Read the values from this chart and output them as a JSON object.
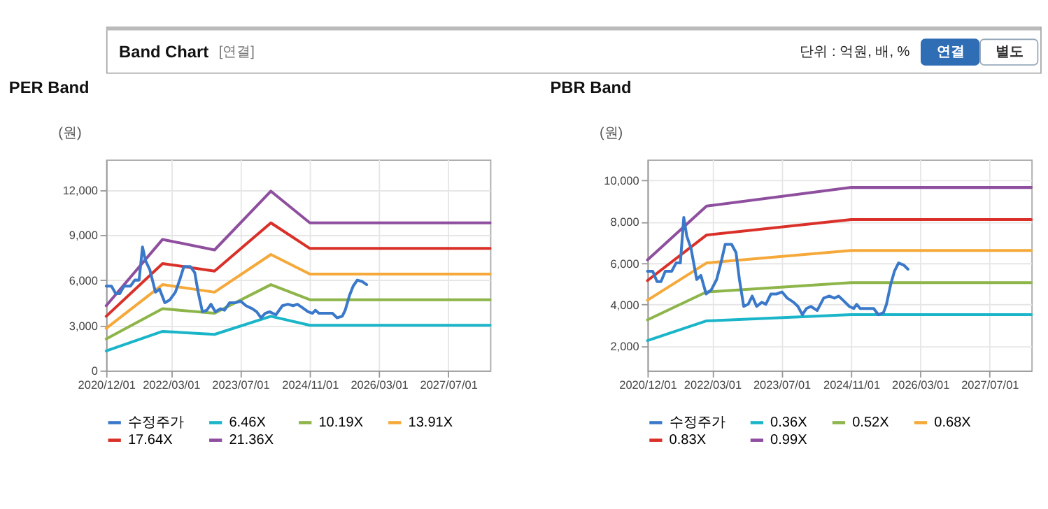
{
  "chart_data": [
    {
      "type": "other",
      "title": "Band Chart",
      "annotations": [
        "[연결]",
        "단위 : 억원, 배, %",
        "연결",
        "별도"
      ]
    },
    {
      "type": "line",
      "title": "PER Band",
      "ylabel": "(원)",
      "xlim": [
        "2020-12-01",
        "2028-04-20"
      ],
      "ylim": [
        0,
        14000
      ],
      "yticks": [
        0,
        {
          "value": 3000,
          "label": "3,000"
        },
        {
          "value": 6000,
          "label": "6,000"
        },
        {
          "value": 9000,
          "label": "9,000"
        },
        {
          "value": 12000,
          "label": "12,000"
        }
      ],
      "xticks": [
        {
          "value": "2020-12-01",
          "label": "2020/12/01"
        },
        {
          "value": "2022-03-01",
          "label": "2022/03/01"
        },
        {
          "value": "2023-07-01",
          "label": "2023/07/01"
        },
        {
          "value": "2024-11-01",
          "label": "2024/11/01"
        },
        {
          "value": "2026-03-01",
          "label": "2026/03/01"
        },
        {
          "value": "2027-07-01",
          "label": "2027/07/01"
        }
      ],
      "grid": true,
      "legend": "bottom",
      "series": [
        {
          "name": "수정주가",
          "color": "#3a78c9",
          "x": [
            "2020-12-01",
            "2021-01-07",
            "2021-02-06",
            "2021-03-06",
            "2021-04-05",
            "2021-05-20",
            "2021-06-20",
            "2021-07-20",
            "2021-08-13",
            "2021-09-03",
            "2021-10-03",
            "2021-11-12",
            "2021-12-11",
            "2022-01-17",
            "2022-02-22",
            "2022-04-01",
            "2022-05-01",
            "2022-05-31",
            "2022-07-15",
            "2022-08-15",
            "2022-09-08",
            "2022-10-08",
            "2022-11-08",
            "2022-12-07",
            "2023-01-07",
            "2023-02-12",
            "2023-03-12",
            "2023-04-17",
            "2023-05-26",
            "2023-07-04",
            "2023-08-10",
            "2023-09-24",
            "2023-10-24",
            "2023-11-24",
            "2023-12-23",
            "2024-01-23",
            "2024-03-07",
            "2024-04-22",
            "2024-05-31",
            "2024-07-06",
            "2024-08-05",
            "2024-09-05",
            "2024-10-19",
            "2024-11-19",
            "2024-12-10",
            "2025-01-03",
            "2025-03-03",
            "2025-04-08",
            "2025-05-11",
            "2025-06-16",
            "2025-07-07",
            "2025-08-07",
            "2025-09-01",
            "2025-09-30",
            "2025-11-05",
            "2025-12-05"
          ],
          "values": [
            5600,
            5600,
            5100,
            5100,
            5600,
            5600,
            6000,
            6000,
            8200,
            7300,
            6700,
            5200,
            5400,
            4500,
            4700,
            5200,
            6000,
            6900,
            6900,
            6500,
            5200,
            3900,
            4000,
            4400,
            3900,
            4100,
            4000,
            4500,
            4500,
            4600,
            4300,
            4100,
            3900,
            3500,
            3800,
            3900,
            3700,
            4300,
            4400,
            4300,
            4400,
            4200,
            3900,
            3800,
            4000,
            3800,
            3800,
            3800,
            3500,
            3600,
            4000,
            5000,
            5600,
            6000,
            5900,
            5700
          ]
        },
        {
          "name": "6.46X",
          "color": "#1ab5c8",
          "x": [
            "2020-12-01",
            "2022-01-01",
            "2023-01-01",
            "2024-02-01",
            "2024-11-01",
            "2028-04-20"
          ],
          "values": [
            1300,
            2600,
            2400,
            3600,
            3000,
            3000
          ]
        },
        {
          "name": "10.19X",
          "color": "#8db54a",
          "x": [
            "2020-12-01",
            "2022-01-01",
            "2023-01-01",
            "2024-02-01",
            "2024-11-01",
            "2028-04-20"
          ],
          "values": [
            2100,
            4100,
            3800,
            5700,
            4700,
            4700
          ]
        },
        {
          "name": "13.91X",
          "color": "#f5a93a",
          "x": [
            "2020-12-01",
            "2022-01-01",
            "2023-01-01",
            "2024-02-01",
            "2024-11-01",
            "2028-04-20"
          ],
          "values": [
            2800,
            5700,
            5200,
            7700,
            6400,
            6400
          ]
        },
        {
          "name": "17.64X",
          "color": "#d9312a",
          "x": [
            "2020-12-01",
            "2022-01-01",
            "2023-01-01",
            "2024-02-01",
            "2024-11-01",
            "2028-04-20"
          ],
          "values": [
            3600,
            7100,
            6600,
            9800,
            8100,
            8100
          ]
        },
        {
          "name": "21.36X",
          "color": "#8e4f9e",
          "x": [
            "2020-12-01",
            "2022-01-01",
            "2023-01-01",
            "2024-02-01",
            "2024-11-01",
            "2028-04-20"
          ],
          "values": [
            4300,
            8700,
            8000,
            11900,
            9800,
            9800
          ]
        }
      ]
    },
    {
      "type": "line",
      "title": "PBR Band",
      "ylabel": "(원)",
      "xlim": [
        "2020-12-01",
        "2028-04-20"
      ],
      "ylim": [
        800,
        11000
      ],
      "yticks": [
        {
          "value": 2000,
          "label": "2,000"
        },
        {
          "value": 4000,
          "label": "4,000"
        },
        {
          "value": 6000,
          "label": "6,000"
        },
        {
          "value": 8000,
          "label": "8,000"
        },
        {
          "value": 10000,
          "label": "10,000"
        }
      ],
      "xticks": [
        {
          "value": "2020-12-01",
          "label": "2020/12/01"
        },
        {
          "value": "2022-03-01",
          "label": "2022/03/01"
        },
        {
          "value": "2023-07-01",
          "label": "2023/07/01"
        },
        {
          "value": "2024-11-01",
          "label": "2024/11/01"
        },
        {
          "value": "2026-03-01",
          "label": "2026/03/01"
        },
        {
          "value": "2027-07-01",
          "label": "2027/07/01"
        }
      ],
      "grid": true,
      "legend": "bottom",
      "series": [
        {
          "name": "수정주가",
          "color": "#3a78c9",
          "x": [
            "2020-12-01",
            "2021-01-07",
            "2021-02-06",
            "2021-03-06",
            "2021-04-05",
            "2021-05-20",
            "2021-06-20",
            "2021-07-20",
            "2021-08-13",
            "2021-09-03",
            "2021-10-03",
            "2021-11-12",
            "2021-12-11",
            "2022-01-17",
            "2022-02-22",
            "2022-04-01",
            "2022-05-01",
            "2022-05-31",
            "2022-07-15",
            "2022-08-15",
            "2022-09-08",
            "2022-10-08",
            "2022-11-08",
            "2022-12-07",
            "2023-01-07",
            "2023-02-12",
            "2023-03-12",
            "2023-04-17",
            "2023-05-26",
            "2023-07-04",
            "2023-08-10",
            "2023-09-24",
            "2023-10-24",
            "2023-11-24",
            "2023-12-23",
            "2024-01-23",
            "2024-03-07",
            "2024-04-22",
            "2024-05-31",
            "2024-07-06",
            "2024-08-05",
            "2024-09-05",
            "2024-10-19",
            "2024-11-19",
            "2024-12-10",
            "2025-01-03",
            "2025-03-03",
            "2025-04-08",
            "2025-05-11",
            "2025-06-16",
            "2025-07-07",
            "2025-08-07",
            "2025-09-01",
            "2025-09-30",
            "2025-11-05",
            "2025-12-05"
          ],
          "values": [
            5600,
            5600,
            5100,
            5100,
            5600,
            5600,
            6000,
            6000,
            8200,
            7300,
            6700,
            5200,
            5400,
            4500,
            4700,
            5200,
            6000,
            6900,
            6900,
            6500,
            5200,
            3900,
            4000,
            4400,
            3900,
            4100,
            4000,
            4500,
            4500,
            4600,
            4300,
            4100,
            3900,
            3500,
            3800,
            3900,
            3700,
            4300,
            4400,
            4300,
            4400,
            4200,
            3900,
            3800,
            4000,
            3800,
            3800,
            3800,
            3500,
            3600,
            4000,
            5000,
            5600,
            6000,
            5900,
            5700
          ]
        },
        {
          "name": "0.36X",
          "color": "#1ab5c8",
          "x": [
            "2020-12-01",
            "2022-01-20",
            "2024-11-01",
            "2028-04-20"
          ],
          "values": [
            2250,
            3200,
            3500,
            3500
          ]
        },
        {
          "name": "0.52X",
          "color": "#8db54a",
          "x": [
            "2020-12-01",
            "2022-01-20",
            "2024-11-01",
            "2028-04-20"
          ],
          "values": [
            3250,
            4600,
            5050,
            5050
          ]
        },
        {
          "name": "0.68X",
          "color": "#f5a93a",
          "x": [
            "2020-12-01",
            "2022-01-20",
            "2024-11-01",
            "2028-04-20"
          ],
          "values": [
            4200,
            6000,
            6600,
            6600
          ]
        },
        {
          "name": "0.83X",
          "color": "#d9312a",
          "x": [
            "2020-12-01",
            "2022-01-20",
            "2024-11-01",
            "2028-04-20"
          ],
          "values": [
            5150,
            7350,
            8100,
            8100
          ]
        },
        {
          "name": "0.99X",
          "color": "#8e4f9e",
          "x": [
            "2020-12-01",
            "2022-01-20",
            "2024-11-01",
            "2028-04-20"
          ],
          "values": [
            6150,
            8750,
            9650,
            9650
          ]
        }
      ]
    }
  ]
}
